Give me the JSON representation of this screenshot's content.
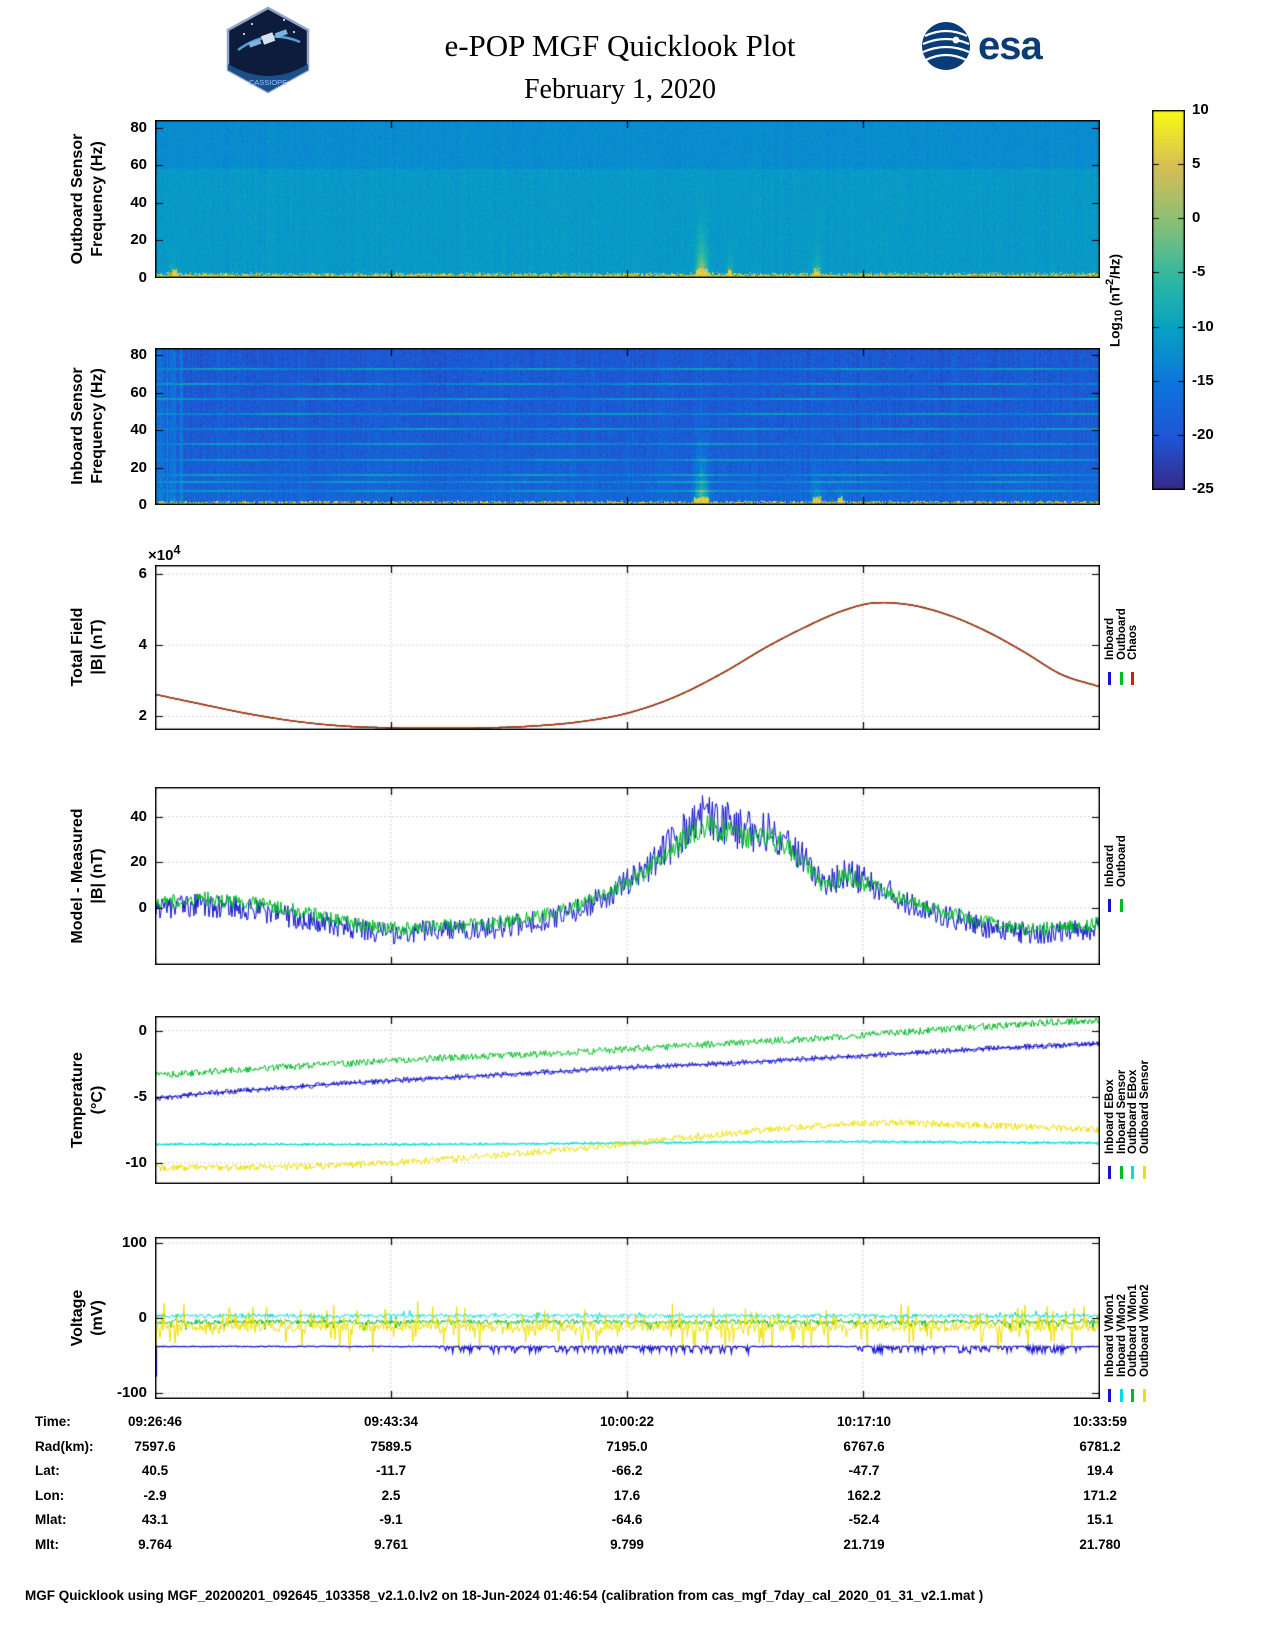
{
  "page": {
    "title": "e-POP MGF Quicklook Plot",
    "date": "February 1, 2020",
    "esa_logo_text": "esa",
    "patch_label": "CASSIOPE",
    "footer": "MGF Quicklook using MGF_20200201_092645_103358_v2.1.0.lv2 on 18-Jun-2024 01:46:54 (calibration from cas_mgf_7day_cal_2020_01_31_v2.1.mat )"
  },
  "colorbar": {
    "min": -25,
    "max": 10,
    "ticks": [
      10,
      5,
      0,
      -5,
      -10,
      -15,
      -20,
      -25
    ],
    "label_parts": {
      "pre": "Log",
      "sub": "10",
      "mid": " (nT",
      "sup": "2",
      "post": "/Hz)"
    }
  },
  "time_axis": {
    "fractions": [
      0,
      0.25,
      0.5,
      0.75,
      1
    ],
    "labels": [
      "09:26:46",
      "09:43:34",
      "10:00:22",
      "10:17:10",
      "10:33:59"
    ]
  },
  "bottom_table": {
    "rows": [
      {
        "label": "Time:",
        "values": [
          "09:26:46",
          "09:43:34",
          "10:00:22",
          "10:17:10",
          "10:33:59"
        ]
      },
      {
        "label": "Rad(km):",
        "values": [
          "7597.6",
          "7589.5",
          "7195.0",
          "6767.6",
          "6781.2"
        ]
      },
      {
        "label": "Lat:",
        "values": [
          "40.5",
          "-11.7",
          "-66.2",
          "-47.7",
          "19.4"
        ]
      },
      {
        "label": "Lon:",
        "values": [
          "-2.9",
          "2.5",
          "17.6",
          "162.2",
          "171.2"
        ]
      },
      {
        "label": "Mlat:",
        "values": [
          "43.1",
          "-9.1",
          "-64.6",
          "-52.4",
          "15.1"
        ]
      },
      {
        "label": "Mlt:",
        "values": [
          "9.764",
          "9.761",
          "9.799",
          "21.719",
          "21.780"
        ]
      }
    ]
  },
  "chart_data": [
    {
      "id": "outboard_spectrogram",
      "type": "heatmap",
      "ylabel_lines": [
        "Outboard Sensor",
        "Frequency (Hz)"
      ],
      "ylim": [
        0,
        84
      ],
      "yticks": [
        0,
        20,
        40,
        60,
        80
      ],
      "units": "Log10 (nT2/Hz)",
      "base_power": -11,
      "noise": 1.3,
      "col_noise": 0.5,
      "top_darken": [
        58,
        -1.6
      ],
      "band_fmax": 2.2,
      "band_power": 6,
      "seed": 3,
      "events": [
        {
          "t": 0.578,
          "width": 0.004,
          "amp": 19,
          "fscale": 11
        },
        {
          "t": 0.608,
          "width": 0.0025,
          "amp": 8,
          "fscale": 6
        },
        {
          "t": 0.7,
          "width": 0.003,
          "amp": 10,
          "fscale": 7
        },
        {
          "t": 0.02,
          "width": 0.004,
          "amp": 6,
          "fscale": 4
        }
      ]
    },
    {
      "id": "inboard_spectrogram",
      "type": "heatmap",
      "ylabel_lines": [
        "Inboard Sensor",
        "Frequency (Hz)"
      ],
      "ylim": [
        0,
        84
      ],
      "yticks": [
        0,
        20,
        40,
        60,
        80
      ],
      "units": "Log10 (nT2/Hz)",
      "base_power": -19.5,
      "noise": 2.2,
      "col_noise": 1.2,
      "left_streaks": 0.035,
      "grad": 2.5,
      "lines": [
        8,
        12.5,
        16.5,
        24.5,
        33,
        41,
        49,
        57,
        65,
        73
      ],
      "line_power": -12.5,
      "band_fmax": 1.8,
      "band_power": 6,
      "seed": 11,
      "events": [
        {
          "t": 0.578,
          "width": 0.005,
          "amp": 17,
          "fscale": 16
        },
        {
          "t": 0.7,
          "width": 0.004,
          "amp": 10,
          "fscale": 9
        },
        {
          "t": 0.725,
          "width": 0.003,
          "amp": 7,
          "fscale": 6
        }
      ]
    },
    {
      "id": "total_field",
      "type": "line",
      "ylabel_lines": [
        "Total Field",
        "|B| (nT)"
      ],
      "scale_base": "×10",
      "scale_exp": "4",
      "ylim": [
        16200,
        62500
      ],
      "yticks": [
        20000,
        40000,
        60000
      ],
      "ytick_labels": [
        "2",
        "4",
        "6"
      ],
      "legend": [
        {
          "label": "Inboard",
          "color": "#1414cc"
        },
        {
          "label": "Outboard",
          "color": "#00bb22"
        },
        {
          "label": "Chaos",
          "color": "#cc2200"
        }
      ],
      "series": [
        {
          "name": "Inboard",
          "color": "#1414cc",
          "lw": 1.3,
          "x": [
            0,
            0.05,
            0.1,
            0.15,
            0.2,
            0.25,
            0.3,
            0.35,
            0.4,
            0.45,
            0.5,
            0.55,
            0.6,
            0.65,
            0.7,
            0.73,
            0.76,
            0.8,
            0.84,
            0.88,
            0.92,
            0.96,
            1
          ],
          "y": [
            26200,
            23400,
            20700,
            18600,
            17300,
            16800,
            16700,
            16800,
            17300,
            18500,
            20900,
            25400,
            32000,
            39800,
            46500,
            49800,
            51800,
            51300,
            48500,
            44000,
            38200,
            31800,
            28400
          ]
        },
        {
          "name": "Outboard",
          "color": "#00bb22",
          "lw": 1.3,
          "x": [
            0,
            0.05,
            0.1,
            0.15,
            0.2,
            0.25,
            0.3,
            0.35,
            0.4,
            0.45,
            0.5,
            0.55,
            0.6,
            0.65,
            0.7,
            0.73,
            0.76,
            0.8,
            0.84,
            0.88,
            0.92,
            0.96,
            1
          ],
          "y": [
            26200,
            23400,
            20700,
            18600,
            17300,
            16800,
            16700,
            16800,
            17300,
            18500,
            20900,
            25400,
            32000,
            39800,
            46500,
            49800,
            51800,
            51300,
            48500,
            44000,
            38200,
            31800,
            28400
          ]
        },
        {
          "name": "Chaos",
          "color": "#cc2200",
          "lw": 1.3,
          "x": [
            0,
            0.05,
            0.1,
            0.15,
            0.2,
            0.25,
            0.3,
            0.35,
            0.4,
            0.45,
            0.5,
            0.55,
            0.6,
            0.65,
            0.7,
            0.73,
            0.76,
            0.8,
            0.84,
            0.88,
            0.92,
            0.96,
            1
          ],
          "y": [
            26200,
            23400,
            20700,
            18600,
            17300,
            16800,
            16700,
            16800,
            17300,
            18500,
            20900,
            25400,
            32000,
            39800,
            46500,
            49800,
            51800,
            51300,
            48500,
            44000,
            38200,
            31800,
            28400
          ]
        }
      ]
    },
    {
      "id": "model_minus_measured",
      "type": "line",
      "ylabel_lines": [
        "Model - Measured",
        "|B| (nT)"
      ],
      "ylim": [
        -25,
        53
      ],
      "yticks": [
        0,
        20,
        40
      ],
      "legend": [
        {
          "label": "Inboard",
          "color": "#1414cc"
        },
        {
          "label": "Outboard",
          "color": "#00bb22"
        }
      ],
      "series": [
        {
          "name": "Inboard",
          "color": "#1414cc",
          "noise": 5,
          "noise_grow": true,
          "x": [
            0,
            0.04,
            0.08,
            0.12,
            0.16,
            0.2,
            0.25,
            0.3,
            0.35,
            0.4,
            0.44,
            0.48,
            0.52,
            0.55,
            0.58,
            0.6,
            0.63,
            0.66,
            0.69,
            0.71,
            0.73,
            0.75,
            0.78,
            0.81,
            0.85,
            0.9,
            0.94,
            1
          ],
          "y": [
            -1,
            1,
            0,
            -2,
            -5,
            -8,
            -11,
            -10,
            -9,
            -6,
            -2,
            6,
            17,
            29,
            40,
            38,
            33,
            32,
            20,
            11,
            15,
            12,
            6,
            0,
            -5,
            -10,
            -11,
            -9
          ]
        },
        {
          "name": "Outboard",
          "color": "#00bb22",
          "noise": 3,
          "noise_grow": true,
          "x": [
            0,
            0.04,
            0.08,
            0.12,
            0.16,
            0.2,
            0.25,
            0.3,
            0.35,
            0.4,
            0.44,
            0.48,
            0.52,
            0.55,
            0.58,
            0.6,
            0.63,
            0.66,
            0.69,
            0.71,
            0.73,
            0.75,
            0.78,
            0.81,
            0.85,
            0.9,
            0.94,
            1
          ],
          "y": [
            2,
            4,
            3,
            1,
            -2,
            -6,
            -9,
            -8,
            -7,
            -4,
            0,
            7,
            16,
            26,
            36,
            34,
            30,
            29,
            18,
            10,
            14,
            11,
            6,
            1,
            -3,
            -8,
            -9,
            -7
          ]
        }
      ]
    },
    {
      "id": "temperature",
      "type": "line",
      "ylabel_lines": [
        "Temperature",
        "(°C)"
      ],
      "ylim": [
        -11.6,
        1.1
      ],
      "yticks": [
        0,
        -5,
        -10
      ],
      "legend": [
        {
          "label": "Inboard EBox",
          "color": "#1414cc"
        },
        {
          "label": "Inboard Sensor",
          "color": "#00bb22"
        },
        {
          "label": "Outboard EBox",
          "color": "#00dde0"
        },
        {
          "label": "Outboard Sensor",
          "color": "#f0e000"
        }
      ],
      "series": [
        {
          "name": "Inboard EBox",
          "color": "#1414cc",
          "noise": 0.22,
          "smooth": true,
          "x": [
            0,
            0.1,
            0.2,
            0.3,
            0.4,
            0.5,
            0.6,
            0.7,
            0.8,
            0.9,
            1
          ],
          "y": [
            -5.1,
            -4.5,
            -4.0,
            -3.6,
            -3.2,
            -2.8,
            -2.5,
            -2.1,
            -1.7,
            -1.3,
            -1.0
          ]
        },
        {
          "name": "Inboard Sensor",
          "color": "#00bb22",
          "noise": 0.26,
          "x": [
            0,
            0.1,
            0.2,
            0.3,
            0.4,
            0.5,
            0.6,
            0.7,
            0.8,
            0.9,
            1
          ],
          "y": [
            -3.4,
            -2.9,
            -2.5,
            -2.1,
            -1.8,
            -1.4,
            -1.0,
            -0.6,
            -0.1,
            0.4,
            0.8
          ]
        },
        {
          "name": "Outboard EBox",
          "color": "#00dde0",
          "noise": 0.12,
          "smooth": true,
          "x": [
            0,
            0.3,
            0.5,
            0.7,
            1
          ],
          "y": [
            -8.6,
            -8.6,
            -8.5,
            -8.4,
            -8.5
          ]
        },
        {
          "name": "Outboard Sensor",
          "color": "#f0e000",
          "noise": 0.26,
          "x": [
            0,
            0.15,
            0.25,
            0.35,
            0.45,
            0.55,
            0.65,
            0.75,
            0.85,
            1
          ],
          "y": [
            -10.4,
            -10.3,
            -10.0,
            -9.5,
            -8.9,
            -8.2,
            -7.5,
            -7.0,
            -7.1,
            -7.5
          ]
        }
      ]
    },
    {
      "id": "voltage",
      "type": "line",
      "ylabel_lines": [
        "Voltage",
        "(mV)"
      ],
      "ylim": [
        -108,
        108
      ],
      "yticks": [
        100,
        0,
        -100
      ],
      "legend": [
        {
          "label": "Inboard VMon1",
          "color": "#1414cc"
        },
        {
          "label": "Inboard VMon2",
          "color": "#00dde0"
        },
        {
          "label": "Outboard VMon1",
          "color": "#00bb22"
        },
        {
          "label": "Outboard VMon2",
          "color": "#f0e000"
        }
      ],
      "series": [
        {
          "name": "Outboard VMon1",
          "color": "#00bb22",
          "noise": 3,
          "spike_p": 0.1,
          "spike_amp": 10,
          "spike_down": true,
          "x": [
            0,
            1
          ],
          "y": [
            -5,
            -5
          ]
        },
        {
          "name": "Outboard VMon2",
          "color": "#f0e000",
          "noise": 6,
          "spike_p": 0.3,
          "spike_amp": 28,
          "start_spike": -62,
          "x": [
            0,
            1
          ],
          "y": [
            -12,
            -12
          ]
        },
        {
          "name": "Inboard VMon2",
          "color": "#00dde0",
          "noise": 2.5,
          "spike_p": 0.05,
          "spike_amp": 6,
          "x": [
            0,
            1
          ],
          "y": [
            3,
            3
          ]
        },
        {
          "name": "Inboard VMon1",
          "color": "#1414cc",
          "noise": 0.6,
          "lw": 1.2,
          "dip_ranges": [
            [
              0.3,
              0.64
            ],
            [
              0.74,
              0.98
            ]
          ],
          "dip_amp": 9,
          "start_spike": -78,
          "x": [
            0,
            1
          ],
          "y": [
            -38,
            -38
          ]
        }
      ]
    }
  ]
}
